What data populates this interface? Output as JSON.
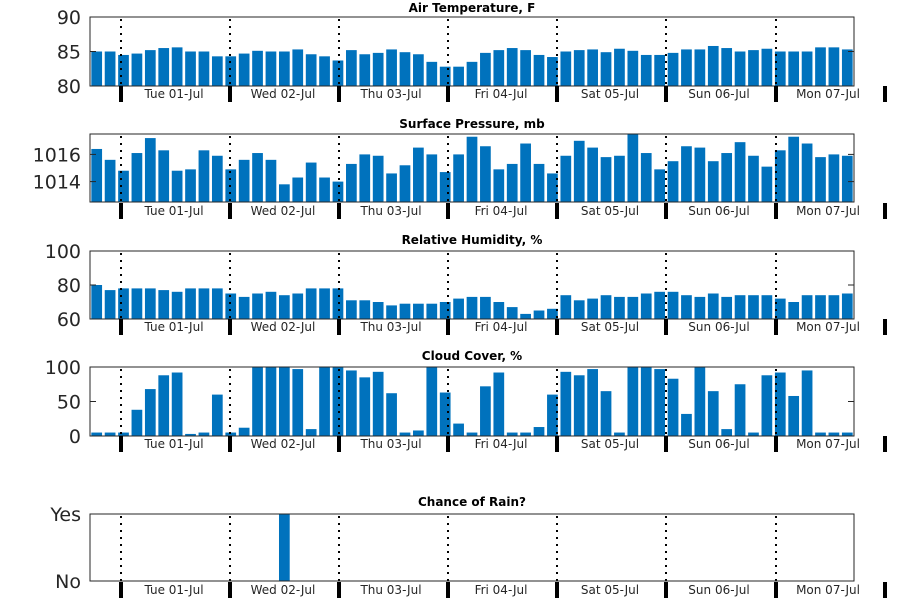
{
  "chart_data": [
    {
      "type": "bar",
      "title": "Air Temperature, F",
      "ylim": [
        80,
        90
      ],
      "yticks": [
        80,
        85,
        90
      ],
      "ytick_labels": [
        "80",
        "85",
        "90"
      ],
      "xtick_labels": [
        "Tue 01-Jul",
        "Wed 02-Jul",
        "Thu 03-Jul",
        "Fri 04-Jul",
        "Sat 05-Jul",
        "Sun 06-Jul",
        "Mon 07-Jul"
      ],
      "values": [
        85.0,
        85.0,
        84.5,
        84.7,
        85.2,
        85.5,
        85.6,
        85.0,
        85.0,
        84.3,
        84.3,
        84.7,
        85.1,
        85.0,
        85.0,
        85.3,
        84.6,
        84.3,
        83.7,
        85.2,
        84.6,
        84.8,
        85.3,
        84.9,
        84.6,
        83.5,
        82.8,
        82.8,
        83.5,
        84.8,
        85.2,
        85.5,
        85.2,
        84.5,
        84.2,
        85.0,
        85.2,
        85.3,
        84.9,
        85.4,
        85.1,
        84.5,
        84.5,
        84.8,
        85.3,
        85.3,
        85.8,
        85.5,
        85.0,
        85.2,
        85.4,
        85.0,
        85.0,
        85.0,
        85.6,
        85.6,
        85.3
      ]
    },
    {
      "type": "bar",
      "title": "Surface Pressure, mb",
      "ylim": [
        1012.5,
        1017.5
      ],
      "yticks": [
        1014,
        1016
      ],
      "ytick_labels": [
        "1014",
        "1016"
      ],
      "xtick_labels": [
        "Tue 01-Jul",
        "Wed 02-Jul",
        "Thu 03-Jul",
        "Fri 04-Jul",
        "Sat 05-Jul",
        "Sun 06-Jul",
        "Mon 07-Jul"
      ],
      "values": [
        1016.4,
        1015.6,
        1014.8,
        1016.1,
        1017.2,
        1016.3,
        1014.8,
        1014.9,
        1016.3,
        1015.9,
        1014.9,
        1015.6,
        1016.1,
        1015.6,
        1013.8,
        1014.3,
        1015.4,
        1014.3,
        1014.0,
        1015.3,
        1016.0,
        1015.9,
        1014.6,
        1015.2,
        1016.5,
        1016.0,
        1014.7,
        1016.0,
        1017.3,
        1016.6,
        1014.9,
        1015.3,
        1016.8,
        1015.3,
        1014.6,
        1015.9,
        1017.0,
        1016.5,
        1015.8,
        1015.9,
        1017.5,
        1016.1,
        1014.9,
        1015.5,
        1016.6,
        1016.5,
        1015.5,
        1016.1,
        1016.9,
        1015.9,
        1015.1,
        1016.3,
        1017.3,
        1016.8,
        1015.8,
        1016.0,
        1015.9
      ]
    },
    {
      "type": "bar",
      "title": "Relative Humidity, %",
      "ylim": [
        60,
        100
      ],
      "yticks": [
        60,
        80,
        100
      ],
      "ytick_labels": [
        "60",
        "80",
        "100"
      ],
      "xtick_labels": [
        "Tue 01-Jul",
        "Wed 02-Jul",
        "Thu 03-Jul",
        "Fri 04-Jul",
        "Sat 05-Jul",
        "Sun 06-Jul",
        "Mon 07-Jul"
      ],
      "values": [
        80,
        77,
        78,
        78,
        78,
        77,
        76,
        78,
        78,
        78,
        75,
        73,
        75,
        76,
        74,
        75,
        78,
        78,
        78,
        71,
        71,
        70,
        68,
        69,
        69,
        69,
        70,
        72,
        73,
        73,
        70,
        67,
        63,
        65,
        66,
        74,
        71,
        72,
        74,
        73,
        73,
        75,
        76,
        76,
        74,
        73,
        75,
        73,
        74,
        74,
        74,
        72,
        70,
        74,
        74,
        74,
        75
      ]
    },
    {
      "type": "bar",
      "title": "Cloud Cover, %",
      "ylim": [
        0,
        100
      ],
      "yticks": [
        0,
        50,
        100
      ],
      "ytick_labels": [
        "0",
        "50",
        "100"
      ],
      "xtick_labels": [
        "Tue 01-Jul",
        "Wed 02-Jul",
        "Thu 03-Jul",
        "Fri 04-Jul",
        "Sat 05-Jul",
        "Sun 06-Jul",
        "Mon 07-Jul"
      ],
      "values": [
        5,
        5,
        5,
        38,
        68,
        88,
        92,
        3,
        5,
        60,
        5,
        12,
        100,
        100,
        100,
        97,
        10,
        100,
        100,
        95,
        85,
        93,
        62,
        5,
        8,
        100,
        63,
        18,
        5,
        72,
        92,
        5,
        5,
        13,
        60,
        93,
        88,
        97,
        65,
        5,
        100,
        100,
        97,
        83,
        32,
        100,
        65,
        10,
        75,
        5,
        88,
        92,
        58,
        95,
        5,
        5,
        5
      ]
    },
    {
      "type": "bar",
      "title": "Chance of Rain?",
      "ylim": [
        0,
        1
      ],
      "yticks": [
        0,
        1
      ],
      "ytick_labels": [
        "No",
        "Yes"
      ],
      "xtick_labels": [
        "Tue 01-Jul",
        "Wed 02-Jul",
        "Thu 03-Jul",
        "Fri 04-Jul",
        "Sat 05-Jul",
        "Sun 06-Jul",
        "Mon 07-Jul"
      ],
      "values": [
        0,
        0,
        0,
        0,
        0,
        0,
        0,
        0,
        0,
        0,
        0,
        0,
        0,
        0,
        1,
        0,
        0,
        0,
        0,
        0,
        0,
        0,
        0,
        0,
        0,
        0,
        0,
        0,
        0,
        0,
        0,
        0,
        0,
        0,
        0,
        0,
        0,
        0,
        0,
        0,
        0,
        0,
        0,
        0,
        0,
        0,
        0,
        0,
        0,
        0,
        0,
        0,
        0,
        0,
        0,
        0,
        0
      ]
    }
  ]
}
